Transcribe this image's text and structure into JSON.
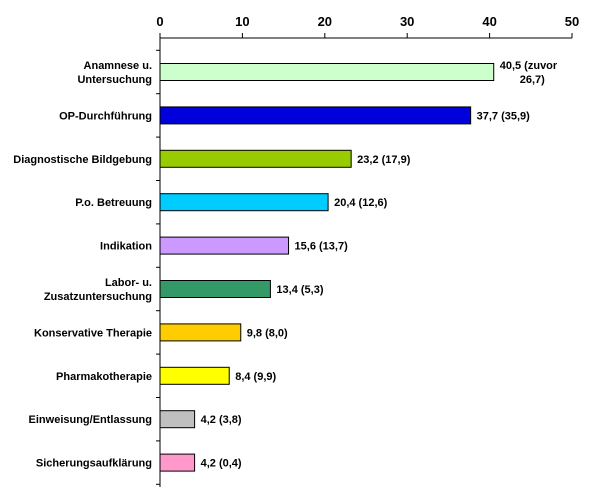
{
  "chart_data": {
    "type": "bar",
    "orientation": "horizontal",
    "categories": [
      "Anamnese u. Untersuchung",
      "OP-Durchführung",
      "Diagnostische Bildgebung",
      "P.o. Betreuung",
      "Indikation",
      "Labor- u. Zusatzuntersuchung",
      "Konservative Therapie",
      "Pharmakotherapie",
      "Einweisung/Entlassung",
      "Sicherungsaufklärung"
    ],
    "category_lines": [
      [
        "Anamnese u.",
        "Untersuchung"
      ],
      [
        "OP-Durchführung"
      ],
      [
        "Diagnostische Bildgebung"
      ],
      [
        "P.o. Betreuung"
      ],
      [
        "Indikation"
      ],
      [
        "Labor- u.",
        "Zusatzuntersuchung"
      ],
      [
        "Konservative Therapie"
      ],
      [
        "Pharmakotherapie"
      ],
      [
        "Einweisung/Entlassung"
      ],
      [
        "Sicherungsaufklärung"
      ]
    ],
    "values": [
      40.5,
      37.7,
      23.2,
      20.4,
      15.6,
      13.4,
      9.8,
      8.4,
      4.2,
      4.2
    ],
    "data_labels": [
      [
        "40,5 (zuvor",
        "26,7)"
      ],
      [
        "37,7 (35,9)"
      ],
      [
        "23,2 (17,9)"
      ],
      [
        "20,4 (12,6)"
      ],
      [
        "15,6 (13,7)"
      ],
      [
        "13,4 (5,3)"
      ],
      [
        "9,8 (8,0)"
      ],
      [
        "8,4 (9,9)"
      ],
      [
        "4,2 (3,8)"
      ],
      [
        "4,2 (0,4)"
      ]
    ],
    "colors": [
      "#ccffcc",
      "#0000dd",
      "#99cc00",
      "#00ccff",
      "#cc99ff",
      "#339966",
      "#ffcc00",
      "#ffff00",
      "#c0c0c0",
      "#ff99cc"
    ],
    "xlim": [
      0,
      50
    ],
    "xticks": [
      0,
      10,
      20,
      30,
      40,
      50
    ],
    "xtick_labels": [
      "0",
      "10",
      "20",
      "30",
      "40",
      "50"
    ],
    "axis_position": "top",
    "grid": false,
    "title": "",
    "xlabel": "",
    "ylabel": ""
  }
}
